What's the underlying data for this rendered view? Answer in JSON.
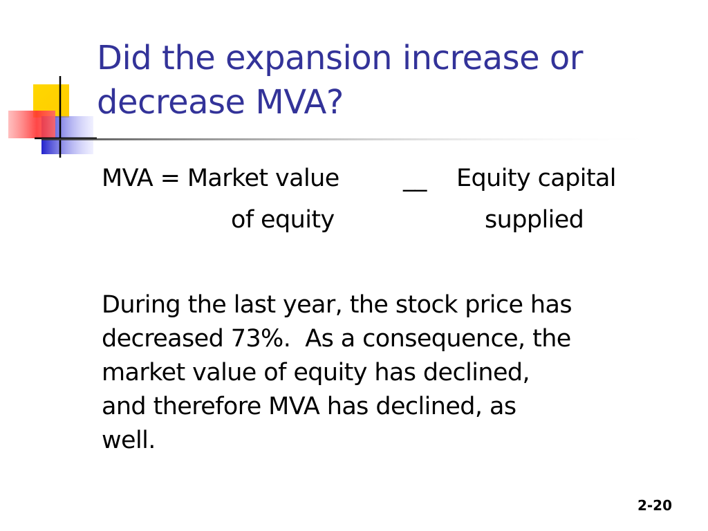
{
  "slide": {
    "title_lines": [
      "Did the expansion increase or",
      "decrease MVA?"
    ],
    "formula": {
      "row1_left": "MVA = Market value",
      "operator": "__",
      "row1_right": "Equity capital",
      "row2_left": "of equity",
      "row2_right": "supplied"
    },
    "paragraph_lines": [
      "During the last year, the stock price has",
      "decreased 73%.  As a consequence, the",
      "market value of equity has declined,",
      "and therefore MVA has declined, as",
      "well."
    ],
    "page_number": "2-20"
  },
  "colors": {
    "title": "#333399",
    "text": "#000000",
    "logo_yellow": "#FFD700",
    "logo_red": "#FF3333",
    "logo_blue": "#3333CC"
  }
}
